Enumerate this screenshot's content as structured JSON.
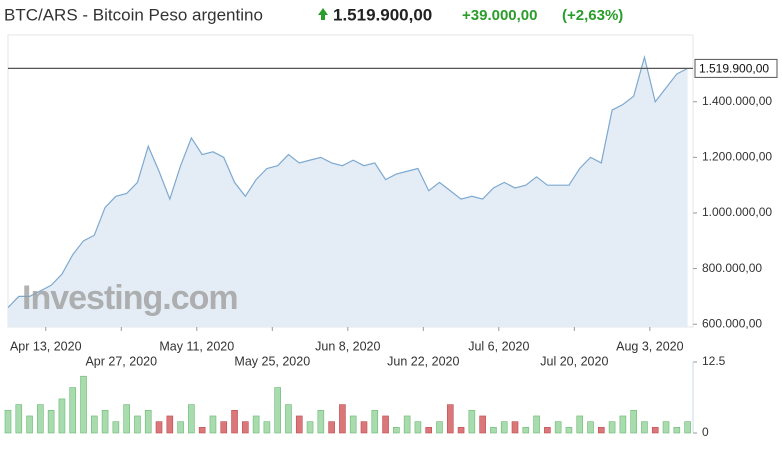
{
  "header": {
    "title": "BTC/ARS - Bitcoin Peso argentino",
    "price": "1.519.900,00",
    "change": "+39.000,00",
    "change_pct": "(+2,63%)"
  },
  "chart_data": {
    "type": "line",
    "watermark": "Investing.com",
    "x": [
      "2020-04-06",
      "2020-04-08",
      "2020-04-10",
      "2020-04-12",
      "2020-04-14",
      "2020-04-16",
      "2020-04-18",
      "2020-04-20",
      "2020-04-22",
      "2020-04-24",
      "2020-04-26",
      "2020-04-28",
      "2020-04-30",
      "2020-05-02",
      "2020-05-04",
      "2020-05-06",
      "2020-05-08",
      "2020-05-10",
      "2020-05-12",
      "2020-05-14",
      "2020-05-16",
      "2020-05-18",
      "2020-05-20",
      "2020-05-22",
      "2020-05-24",
      "2020-05-26",
      "2020-05-28",
      "2020-05-30",
      "2020-06-01",
      "2020-06-03",
      "2020-06-05",
      "2020-06-07",
      "2020-06-09",
      "2020-06-11",
      "2020-06-13",
      "2020-06-15",
      "2020-06-17",
      "2020-06-19",
      "2020-06-21",
      "2020-06-23",
      "2020-06-25",
      "2020-06-27",
      "2020-06-29",
      "2020-07-01",
      "2020-07-03",
      "2020-07-05",
      "2020-07-07",
      "2020-07-09",
      "2020-07-11",
      "2020-07-13",
      "2020-07-15",
      "2020-07-17",
      "2020-07-19",
      "2020-07-21",
      "2020-07-23",
      "2020-07-25",
      "2020-07-27",
      "2020-07-29",
      "2020-07-31",
      "2020-08-02",
      "2020-08-04",
      "2020-08-06",
      "2020-08-08",
      "2020-08-10"
    ],
    "xlim": [
      "2020-04-06",
      "2020-08-11"
    ],
    "xticks": [
      {
        "value": "2020-04-13",
        "label": "Apr 13, 2020"
      },
      {
        "value": "2020-04-27",
        "label": "Apr 27, 2020"
      },
      {
        "value": "2020-05-11",
        "label": "May 11, 2020"
      },
      {
        "value": "2020-05-25",
        "label": "May 25, 2020"
      },
      {
        "value": "2020-06-08",
        "label": "Jun 8, 2020"
      },
      {
        "value": "2020-06-22",
        "label": "Jun 22, 2020"
      },
      {
        "value": "2020-07-06",
        "label": "Jul 6, 2020"
      },
      {
        "value": "2020-07-20",
        "label": "Jul 20, 2020"
      },
      {
        "value": "2020-08-03",
        "label": "Aug 3, 2020"
      }
    ],
    "ylim": [
      590000,
      1640000
    ],
    "yticks": [
      {
        "value": 600000,
        "label": "600.000,00"
      },
      {
        "value": 800000,
        "label": "800.000,00"
      },
      {
        "value": 1000000,
        "label": "1.000.000,00"
      },
      {
        "value": 1200000,
        "label": "1.200.000,00"
      },
      {
        "value": 1400000,
        "label": "1.400.000,00"
      }
    ],
    "price_line": {
      "value": 1519900,
      "label": "1.519.900,00"
    },
    "y2lim": [
      0,
      12.5
    ],
    "y2ticks": [
      0,
      12.5
    ],
    "up_color": "#a8dbad",
    "down_color": "#d9777a",
    "series": [
      {
        "name": "Price",
        "color": "#7ea9cf",
        "fill": "#e4edf5",
        "values": [
          660000,
          700000,
          700000,
          720000,
          740000,
          780000,
          850000,
          900000,
          920000,
          1020000,
          1060000,
          1070000,
          1110000,
          1240000,
          1150000,
          1050000,
          1170000,
          1270000,
          1210000,
          1220000,
          1200000,
          1110000,
          1060000,
          1120000,
          1160000,
          1170000,
          1210000,
          1180000,
          1190000,
          1200000,
          1180000,
          1170000,
          1190000,
          1170000,
          1180000,
          1120000,
          1140000,
          1150000,
          1160000,
          1080000,
          1110000,
          1080000,
          1050000,
          1060000,
          1050000,
          1090000,
          1110000,
          1090000,
          1100000,
          1130000,
          1100000,
          1100000,
          1100000,
          1160000,
          1200000,
          1180000,
          1370000,
          1390000,
          1420000,
          1560000,
          1400000,
          1450000,
          1500000,
          1519900
        ]
      },
      {
        "name": "Volume",
        "type": "bar",
        "axis": "y2",
        "values": [
          4,
          5,
          3,
          5,
          4,
          6,
          8,
          10,
          3,
          4,
          2,
          5,
          3,
          4,
          2,
          3,
          2,
          5,
          1,
          3,
          2,
          4,
          2,
          3,
          2,
          8,
          5,
          3,
          2,
          4,
          2,
          5,
          3,
          2,
          4,
          3,
          1,
          3,
          2,
          1,
          2,
          5,
          1,
          4,
          3,
          1,
          2,
          2,
          1,
          3,
          1,
          2,
          1,
          3,
          2,
          1,
          2,
          3,
          4,
          2,
          1,
          2,
          1,
          2
        ]
      }
    ]
  }
}
